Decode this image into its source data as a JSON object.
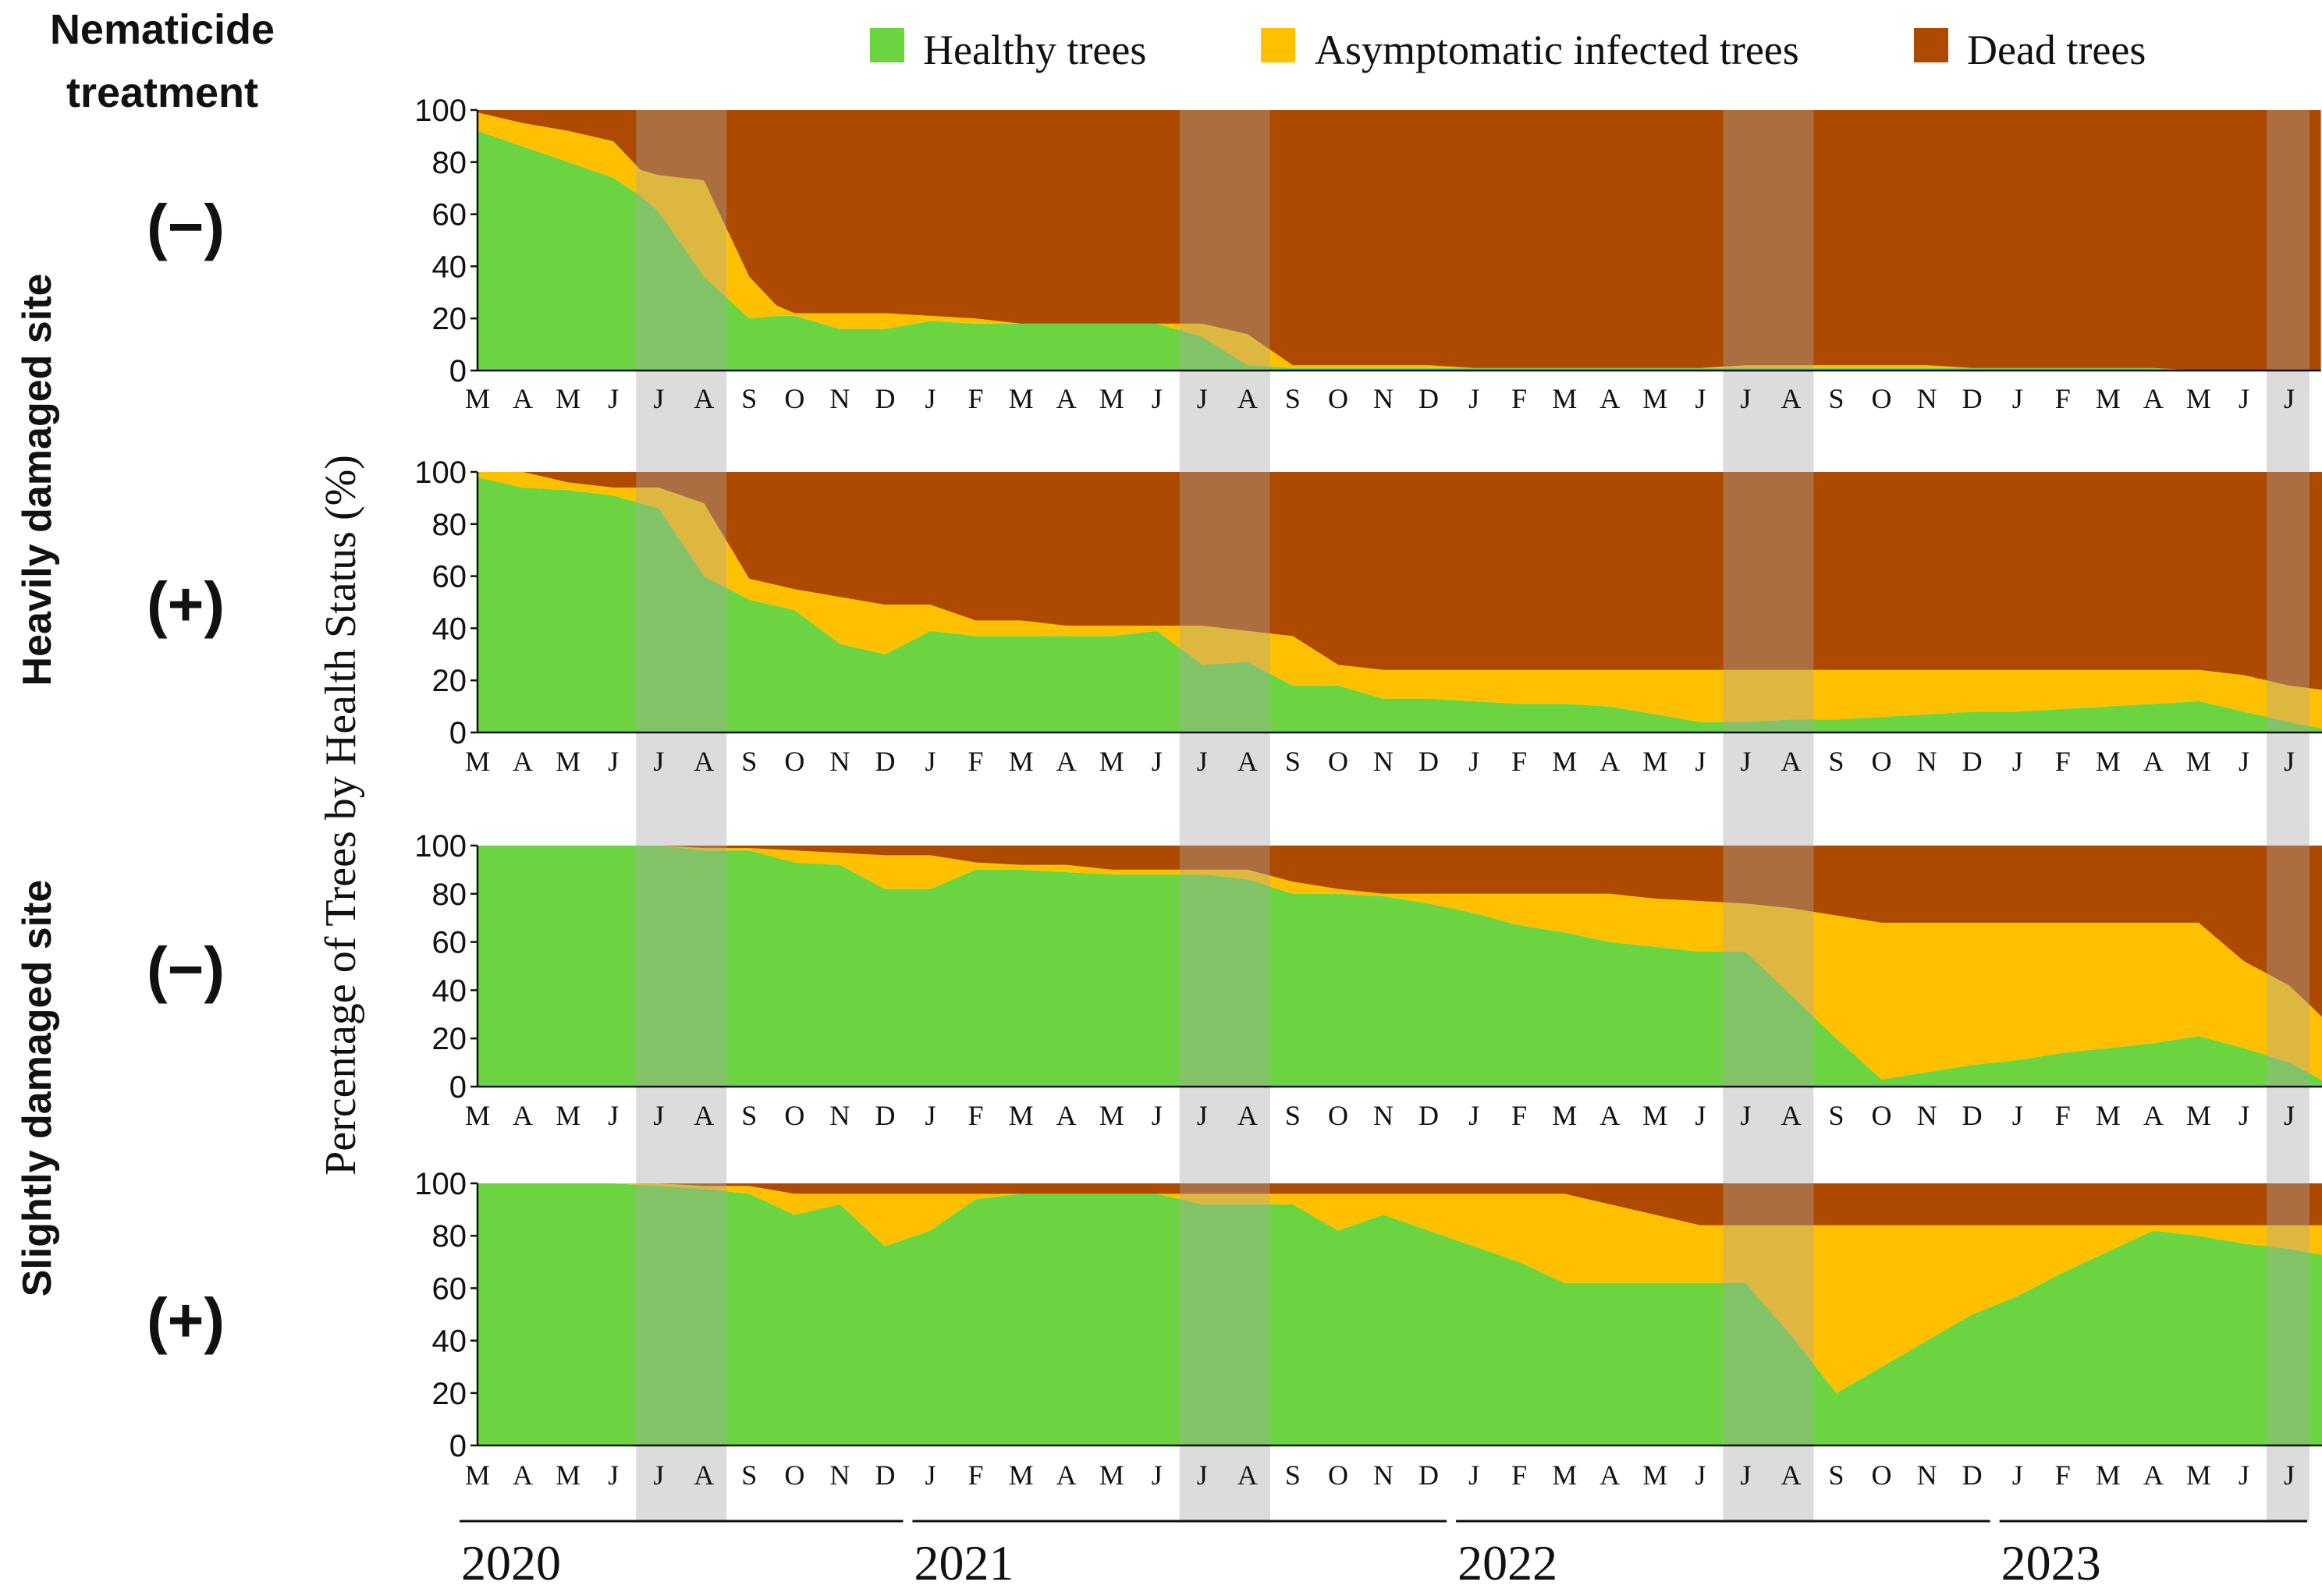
{
  "header": {
    "line1": "Nematicide",
    "line2": "treatment"
  },
  "y_axis_label": "Percentage of Trees by Health Status (%)",
  "sites": [
    {
      "label": "Heavily damaged site",
      "panels": [
        0,
        1
      ]
    },
    {
      "label": "Slightly damaged site",
      "panels": [
        2,
        3
      ]
    }
  ],
  "treatment_labels": [
    "(−)",
    "(+)",
    "(−)",
    "(+)"
  ],
  "legend": [
    {
      "label": "Healthy trees",
      "color": "#6dd441"
    },
    {
      "label": "Asymptomatic infected trees",
      "color": "#ffc000"
    },
    {
      "label": "Dead trees",
      "color": "#ae4a00"
    }
  ],
  "colors": {
    "shade": "#a8a8a8",
    "axis": "#111111"
  },
  "months": [
    "M",
    "A",
    "M",
    "J",
    "J",
    "A",
    "S",
    "O",
    "N",
    "D",
    "J",
    "F",
    "M",
    "A",
    "M",
    "J",
    "J",
    "A",
    "S",
    "O",
    "N",
    "D",
    "J",
    "F",
    "M",
    "A",
    "M",
    "J",
    "J",
    "A",
    "S",
    "O",
    "N",
    "D",
    "J",
    "F",
    "M",
    "A",
    "M",
    "J",
    "J"
  ],
  "years": [
    {
      "label": "2020",
      "start": 0,
      "end": 9
    },
    {
      "label": "2021",
      "start": 10,
      "end": 21
    },
    {
      "label": "2022",
      "start": 22,
      "end": 33
    },
    {
      "label": "2023",
      "start": 34,
      "end": 40
    }
  ],
  "shaded_ranges": [
    [
      4,
      5
    ],
    [
      16,
      17
    ],
    [
      28,
      29
    ],
    [
      40,
      40
    ]
  ],
  "chart_data": [
    {
      "type": "area",
      "stacked": true,
      "site": "Heavily damaged site",
      "treatment": "(−)",
      "ylim": [
        0,
        100
      ],
      "yticks": [
        0,
        20,
        40,
        60,
        80,
        100
      ],
      "x": [
        0,
        1,
        2,
        3,
        3.6,
        4,
        5,
        6,
        6.6,
        7,
        8,
        9,
        10,
        11,
        12,
        13,
        14,
        15,
        16,
        17,
        18,
        19,
        20,
        21,
        22,
        23,
        24,
        25,
        26,
        27,
        28,
        29,
        30,
        31,
        32,
        33,
        34,
        35,
        36,
        37,
        38,
        39,
        40,
        40.7
      ],
      "series": [
        {
          "name": "Healthy trees",
          "values": [
            92,
            86,
            80,
            74,
            67,
            61,
            36,
            20,
            21,
            21,
            16,
            16,
            19,
            18,
            18,
            18,
            18,
            18,
            13,
            2,
            1,
            1,
            1,
            1,
            1,
            1,
            1,
            1,
            1,
            1,
            1,
            1,
            1,
            1,
            1,
            1,
            1,
            1,
            1,
            1,
            0,
            0,
            0,
            0
          ]
        },
        {
          "name": "Asymptomatic infected trees",
          "values": [
            7,
            9,
            12,
            14,
            10,
            14,
            37,
            16,
            4,
            1,
            6,
            6,
            2,
            2,
            0,
            0,
            0,
            0,
            5,
            12,
            1,
            1,
            1,
            1,
            0,
            0,
            0,
            0,
            0,
            0,
            1,
            1,
            1,
            1,
            1,
            0,
            0,
            0,
            0,
            0,
            0,
            0,
            0,
            0
          ]
        },
        {
          "name": "Dead trees",
          "values": [
            1,
            5,
            8,
            12,
            23,
            25,
            27,
            64,
            75,
            78,
            78,
            78,
            79,
            80,
            82,
            82,
            82,
            82,
            82,
            86,
            98,
            98,
            98,
            98,
            99,
            99,
            99,
            99,
            99,
            99,
            98,
            98,
            98,
            98,
            98,
            99,
            99,
            99,
            99,
            99,
            100,
            100,
            100,
            100
          ]
        }
      ]
    },
    {
      "type": "area",
      "stacked": true,
      "site": "Heavily damaged site",
      "treatment": "(+)",
      "ylim": [
        0,
        100
      ],
      "yticks": [
        0,
        20,
        40,
        60,
        80,
        100
      ],
      "x": [
        0,
        1,
        2,
        3,
        4,
        5,
        6,
        7,
        8,
        9,
        10,
        11,
        12,
        13,
        14,
        15,
        16,
        17,
        18,
        19,
        20,
        21,
        22,
        23,
        24,
        25,
        26,
        27,
        28,
        29,
        30,
        31,
        32,
        33,
        34,
        35,
        36,
        37,
        38,
        39,
        40,
        40.9
      ],
      "series": [
        {
          "name": "Healthy trees",
          "values": [
            98,
            94,
            93,
            91,
            86,
            60,
            51,
            47,
            34,
            30,
            39,
            37,
            37,
            37,
            37,
            39,
            26,
            27,
            18,
            18,
            13,
            13,
            12,
            11,
            11,
            10,
            7,
            4,
            4,
            5,
            5,
            6,
            7,
            8,
            8,
            9,
            10,
            11,
            12,
            8,
            4,
            1
          ]
        },
        {
          "name": "Asymptomatic infected trees",
          "values": [
            2,
            6,
            3,
            3,
            8,
            28,
            8,
            8,
            18,
            19,
            10,
            6,
            6,
            4,
            4,
            2,
            15,
            12,
            19,
            8,
            11,
            11,
            12,
            13,
            13,
            14,
            17,
            20,
            20,
            19,
            19,
            18,
            17,
            16,
            16,
            15,
            14,
            13,
            12,
            14,
            14,
            15
          ]
        },
        {
          "name": "Dead trees",
          "values": [
            0,
            0,
            4,
            6,
            6,
            12,
            41,
            45,
            48,
            51,
            51,
            57,
            57,
            59,
            59,
            59,
            59,
            61,
            63,
            74,
            76,
            76,
            76,
            76,
            76,
            76,
            76,
            76,
            76,
            76,
            76,
            76,
            76,
            76,
            76,
            76,
            76,
            76,
            76,
            78,
            82,
            84
          ]
        }
      ]
    },
    {
      "type": "area",
      "stacked": true,
      "site": "Slightly damaged site",
      "treatment": "(−)",
      "ylim": [
        0,
        100
      ],
      "yticks": [
        0,
        20,
        40,
        60,
        80,
        100
      ],
      "x": [
        0,
        1,
        2,
        3,
        4,
        5,
        6,
        7,
        8,
        9,
        10,
        11,
        12,
        13,
        14,
        15,
        16,
        17,
        18,
        19,
        20,
        21,
        22,
        23,
        24,
        25,
        26,
        27,
        28,
        29,
        30,
        31,
        32,
        33,
        34,
        35,
        36,
        37,
        38,
        39,
        40,
        41
      ],
      "series": [
        {
          "name": "Healthy trees",
          "values": [
            100,
            100,
            100,
            100,
            100,
            98,
            98,
            93,
            92,
            82,
            82,
            90,
            90,
            89,
            88,
            88,
            88,
            86,
            80,
            80,
            79,
            76,
            72,
            67,
            64,
            60,
            58,
            56,
            56,
            38,
            20,
            3,
            6,
            9,
            11,
            14,
            16,
            18,
            21,
            16,
            10,
            0
          ]
        },
        {
          "name": "Asymptomatic infected trees",
          "values": [
            0,
            0,
            0,
            0,
            0,
            1,
            1,
            5,
            5,
            14,
            14,
            3,
            2,
            3,
            2,
            2,
            2,
            4,
            5,
            2,
            1,
            4,
            8,
            13,
            16,
            20,
            20,
            21,
            20,
            36,
            51,
            65,
            62,
            59,
            57,
            54,
            52,
            50,
            47,
            36,
            32,
            24
          ]
        },
        {
          "name": "Dead trees",
          "values": [
            0,
            0,
            0,
            0,
            0,
            1,
            1,
            2,
            3,
            4,
            4,
            7,
            8,
            8,
            10,
            10,
            10,
            10,
            15,
            18,
            20,
            20,
            20,
            20,
            20,
            20,
            22,
            23,
            24,
            26,
            29,
            32,
            32,
            32,
            32,
            32,
            32,
            32,
            32,
            48,
            58,
            76
          ]
        }
      ]
    },
    {
      "type": "area",
      "stacked": true,
      "site": "Slightly damaged site",
      "treatment": "(+)",
      "ylim": [
        0,
        100
      ],
      "yticks": [
        0,
        20,
        40,
        60,
        80,
        100
      ],
      "x": [
        0,
        1,
        2,
        3,
        4,
        5,
        6,
        7,
        8,
        9,
        10,
        11,
        12,
        13,
        14,
        15,
        16,
        17,
        18,
        19,
        20,
        21,
        22,
        23,
        24,
        25,
        26,
        27,
        28,
        29,
        30,
        31,
        32,
        33,
        34,
        35,
        36,
        37,
        38,
        39,
        40,
        41
      ],
      "series": [
        {
          "name": "Healthy trees",
          "values": [
            100,
            100,
            100,
            100,
            99,
            98,
            96,
            88,
            92,
            76,
            82,
            94,
            96,
            96,
            96,
            96,
            92,
            92,
            92,
            82,
            88,
            82,
            76,
            70,
            62,
            62,
            62,
            62,
            62,
            42,
            20,
            30,
            40,
            50,
            57,
            66,
            74,
            82,
            80,
            77,
            75,
            72
          ]
        },
        {
          "name": "Asymptomatic infected trees",
          "values": [
            0,
            0,
            0,
            0,
            1,
            1,
            3,
            8,
            4,
            20,
            14,
            2,
            0,
            0,
            0,
            0,
            4,
            4,
            4,
            14,
            8,
            14,
            20,
            26,
            34,
            30,
            26,
            22,
            22,
            42,
            64,
            54,
            44,
            34,
            27,
            18,
            10,
            2,
            4,
            7,
            9,
            12
          ]
        },
        {
          "name": "Dead trees",
          "values": [
            0,
            0,
            0,
            0,
            0,
            1,
            1,
            4,
            4,
            4,
            4,
            4,
            4,
            4,
            4,
            4,
            4,
            4,
            4,
            4,
            4,
            4,
            4,
            4,
            4,
            8,
            12,
            16,
            16,
            16,
            16,
            16,
            16,
            16,
            16,
            16,
            16,
            16,
            16,
            16,
            16,
            16
          ]
        }
      ]
    }
  ]
}
